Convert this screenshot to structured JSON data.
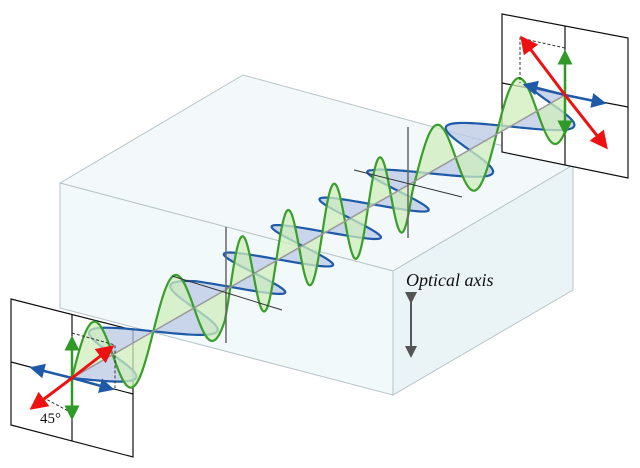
{
  "labels": {
    "optical_axis": "Optical axis",
    "angle": "45°"
  },
  "colors": {
    "green_wave": "#3a9e2a",
    "green_fill": "#cfeebc",
    "blue_wave": "#1f5aa8",
    "blue_fill": "#b9c8e4",
    "polarization_arrow": "#ee1111",
    "crystal_fill": "#eaf5f8"
  }
}
